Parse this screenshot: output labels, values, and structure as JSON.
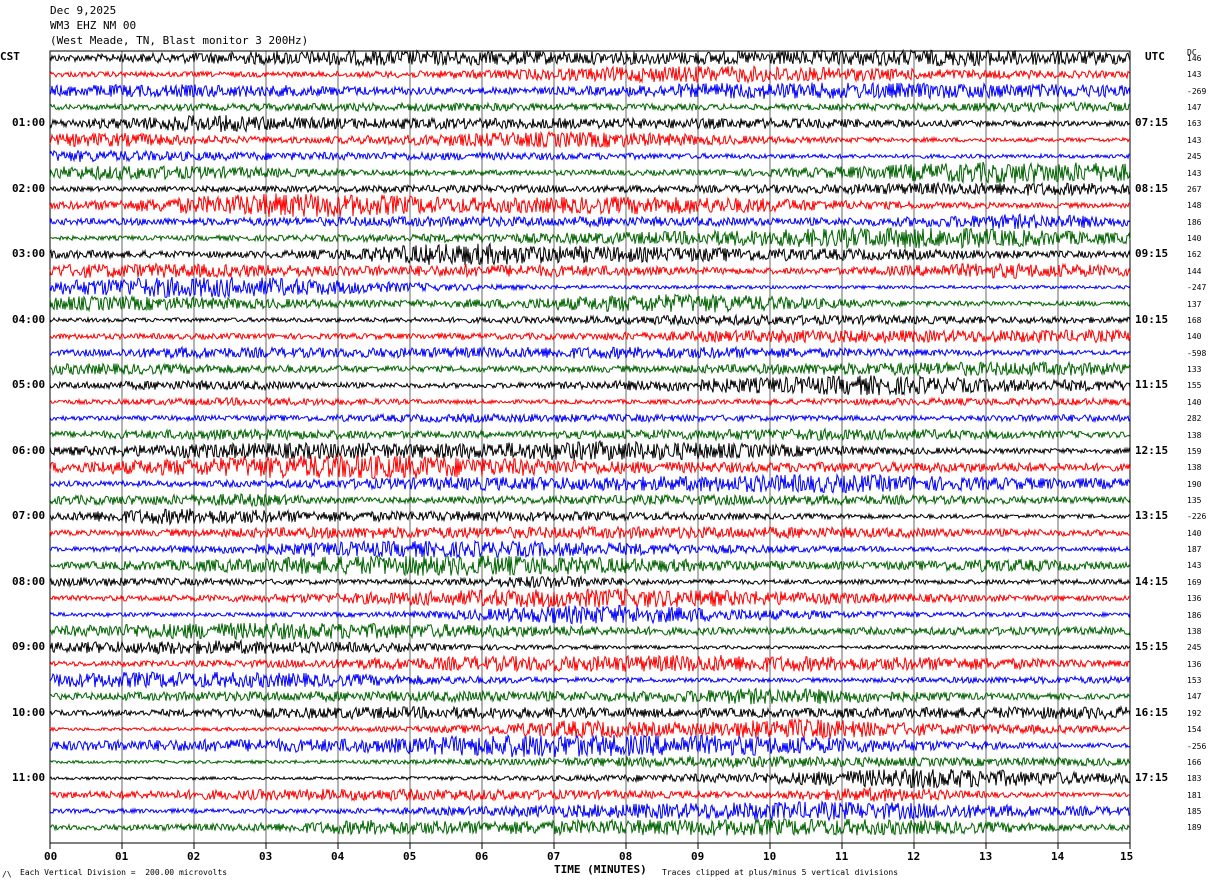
{
  "header": {
    "date": "Dec 9,2025",
    "station": "WM3 EHZ NM 00",
    "location": "(West Meade, TN, Blast monitor 3 200Hz)"
  },
  "left_tz": "CST",
  "right_tz": "UTC",
  "dc_header": "DC",
  "chart_data": {
    "type": "line",
    "title": "WM3 EHZ NM 00",
    "xlabel": "TIME (MINUTES)",
    "x_ticks": [
      "00",
      "01",
      "02",
      "03",
      "04",
      "05",
      "06",
      "07",
      "08",
      "09",
      "10",
      "11",
      "12",
      "13",
      "14",
      "15"
    ],
    "xlim": [
      0,
      15
    ],
    "traces_per_hour": 4,
    "trace_colors": [
      "#000000",
      "#ff0000",
      "#0000ff",
      "#006400"
    ],
    "left_hour_labels": [
      "01:00",
      "02:00",
      "03:00",
      "04:00",
      "05:00",
      "06:00",
      "07:00",
      "08:00",
      "09:00",
      "10:00",
      "11:00"
    ],
    "right_hour_labels": [
      "07:15",
      "08:15",
      "09:15",
      "10:15",
      "11:15",
      "12:15",
      "13:15",
      "14:15",
      "15:15",
      "16:15",
      "17:15"
    ],
    "dc_offsets": [
      "146",
      "143",
      "-269",
      "147",
      "163",
      "143",
      "245",
      "143",
      "267",
      "148",
      "186",
      "140",
      "162",
      "144",
      "-247",
      "137",
      "168",
      "140",
      "-598",
      "133",
      "155",
      "140",
      "282",
      "138",
      "159",
      "138",
      "190",
      "135",
      "-226",
      "140",
      "187",
      "143",
      "169",
      "136",
      "186",
      "138",
      "245",
      "136",
      "153",
      "147",
      "192",
      "154",
      "-256",
      "166",
      "183",
      "181",
      "185",
      "189"
    ],
    "grid": true
  },
  "footer": {
    "scale_note": "Each Vertical Division =  200.00 microvolts",
    "clip_note": "Traces clipped at plus/minus 5 vertical divisions",
    "corner_mark": "/\\"
  }
}
